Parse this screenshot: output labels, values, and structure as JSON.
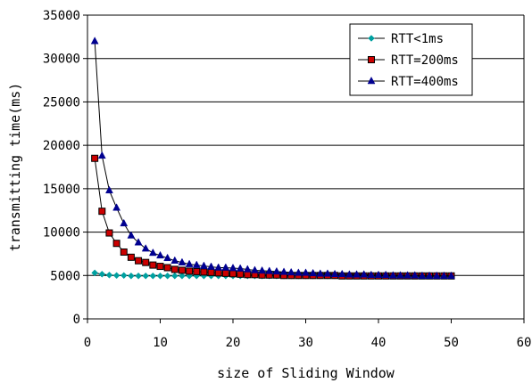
{
  "chart_data": {
    "type": "line",
    "title": "",
    "xlabel": "size of Sliding Window",
    "ylabel": "transmitting time(ms)",
    "xlim": [
      0,
      60
    ],
    "ylim": [
      0,
      35000
    ],
    "xticks": [
      0,
      10,
      20,
      30,
      40,
      50,
      60
    ],
    "yticks": [
      0,
      5000,
      10000,
      15000,
      20000,
      25000,
      30000,
      35000
    ],
    "grid": "horizontal",
    "legend_position": "top-right",
    "x": [
      1,
      2,
      3,
      4,
      5,
      6,
      7,
      8,
      9,
      10,
      11,
      12,
      13,
      14,
      15,
      16,
      17,
      18,
      19,
      20,
      21,
      22,
      23,
      24,
      25,
      26,
      27,
      28,
      29,
      30,
      31,
      32,
      33,
      34,
      35,
      36,
      37,
      38,
      39,
      40,
      41,
      42,
      43,
      44,
      45,
      46,
      47,
      48,
      49,
      50
    ],
    "series": [
      {
        "name": "RTT<1ms",
        "color": "#00a0a0",
        "marker": "diamond",
        "values": [
          5300,
          5150,
          5050,
          5000,
          5000,
          4950,
          4950,
          4950,
          4950,
          4950,
          4950,
          4950,
          4950,
          4950,
          4950,
          4950,
          4950,
          4950,
          4950,
          4950,
          4950,
          4950,
          4950,
          4950,
          4950,
          4950,
          4950,
          4950,
          4950,
          4950,
          4950,
          4950,
          4950,
          4950,
          4950,
          4950,
          4950,
          4950,
          4950,
          4950,
          4950,
          4950,
          4950,
          4950,
          4950,
          4950,
          4950,
          4950,
          4950,
          4950
        ]
      },
      {
        "name": "RTT=200ms",
        "color": "#cc0000",
        "marker": "square",
        "values": [
          18500,
          12400,
          9900,
          8700,
          7700,
          7100,
          6700,
          6500,
          6200,
          6050,
          5900,
          5700,
          5600,
          5500,
          5450,
          5400,
          5350,
          5300,
          5250,
          5200,
          5150,
          5100,
          5100,
          5050,
          5050,
          5050,
          5000,
          5000,
          5000,
          5000,
          5000,
          5000,
          5000,
          5000,
          4950,
          4950,
          4950,
          4950,
          4950,
          4950,
          4950,
          4950,
          4950,
          4950,
          4950,
          4950,
          4950,
          4950,
          4950,
          4950
        ]
      },
      {
        "name": "RTT=400ms",
        "color": "#000090",
        "marker": "triangle",
        "values": [
          32000,
          18800,
          14800,
          12800,
          11000,
          9600,
          8800,
          8100,
          7600,
          7300,
          7000,
          6700,
          6500,
          6300,
          6200,
          6100,
          6000,
          5900,
          5900,
          5850,
          5800,
          5700,
          5600,
          5550,
          5500,
          5450,
          5400,
          5350,
          5300,
          5300,
          5250,
          5200,
          5200,
          5150,
          5150,
          5100,
          5100,
          5100,
          5050,
          5050,
          5050,
          5000,
          5000,
          5000,
          5000,
          4950,
          4950,
          4950,
          4950,
          4950
        ]
      }
    ]
  }
}
